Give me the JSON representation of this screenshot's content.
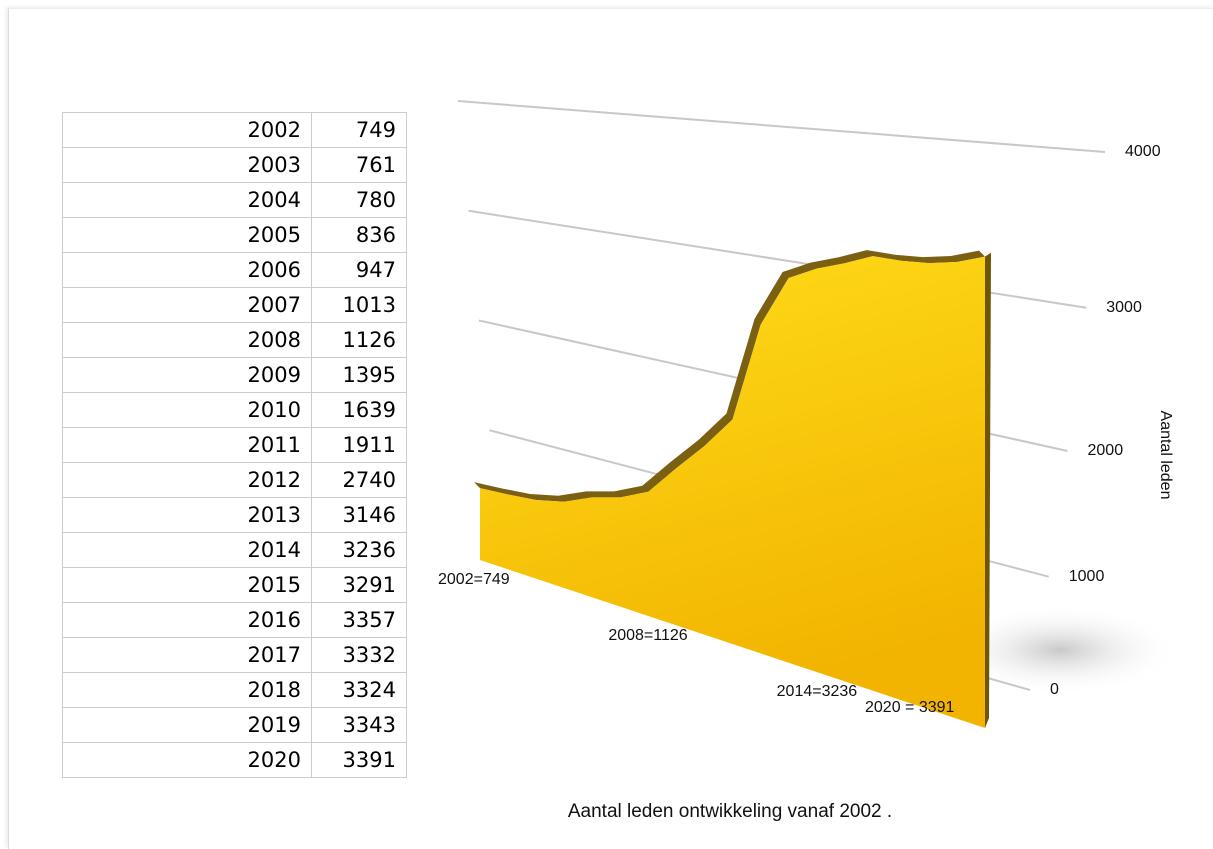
{
  "table": {
    "rows": [
      [
        2002,
        749
      ],
      [
        2003,
        761
      ],
      [
        2004,
        780
      ],
      [
        2005,
        836
      ],
      [
        2006,
        947
      ],
      [
        2007,
        1013
      ],
      [
        2008,
        1126
      ],
      [
        2009,
        1395
      ],
      [
        2010,
        1639
      ],
      [
        2011,
        1911
      ],
      [
        2012,
        2740
      ],
      [
        2013,
        3146
      ],
      [
        2014,
        3236
      ],
      [
        2015,
        3291
      ],
      [
        2016,
        3357
      ],
      [
        2017,
        3332
      ],
      [
        2018,
        3324
      ],
      [
        2019,
        3343
      ],
      [
        2020,
        3391
      ]
    ]
  },
  "chart_data": {
    "type": "area",
    "title": "Aantal leden ontwikkeling vanaf 2002 .",
    "y_label": "Aantal leden",
    "categories": [
      "2002=749",
      null,
      null,
      null,
      null,
      null,
      "2008=1126",
      null,
      null,
      null,
      null,
      null,
      "2014=3236",
      null,
      null,
      null,
      null,
      null,
      "2020 = 3391"
    ],
    "values": [
      749,
      761,
      780,
      836,
      947,
      1013,
      1126,
      1395,
      1639,
      1911,
      2740,
      3146,
      3236,
      3291,
      3357,
      3332,
      3324,
      3343,
      3391
    ],
    "color": "#f7c20a",
    "ylim": [
      0,
      4000
    ],
    "yticks": [
      0,
      1000,
      2000,
      3000,
      4000
    ],
    "grid": true
  }
}
